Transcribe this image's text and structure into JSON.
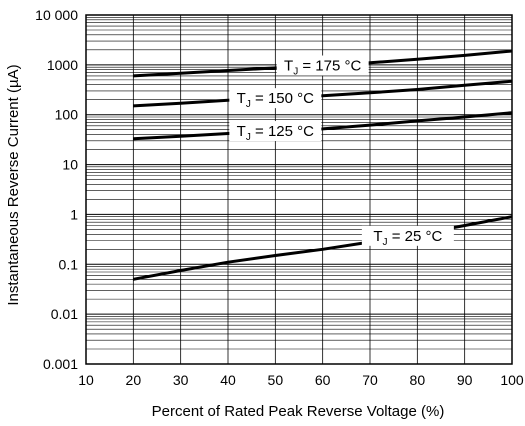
{
  "chart_data": {
    "type": "line",
    "xlabel": "Percent of Rated Peak Reverse Voltage (%)",
    "ylabel": "Instantaneous Reverse Current (µA)",
    "xlim": [
      10,
      100
    ],
    "ylim": [
      0.001,
      10000
    ],
    "yscale": "log",
    "grid": true,
    "x_ticks": [
      "10",
      "20",
      "30",
      "40",
      "50",
      "60",
      "70",
      "80",
      "90",
      "100"
    ],
    "y_ticks": [
      "10 000",
      "1000",
      "100",
      "10",
      "1",
      "0.1",
      "0.01",
      "0.001"
    ],
    "x_tick_values": [
      10,
      20,
      30,
      40,
      50,
      60,
      70,
      80,
      90,
      100
    ],
    "y_tick_values": [
      10000,
      1000,
      100,
      10,
      1,
      0.1,
      0.01,
      0.001
    ],
    "series": [
      {
        "label_main": "T",
        "label_sub": "J",
        "label_tail": " = 175 °C",
        "x": [
          20,
          30,
          40,
          50,
          60,
          70,
          80,
          90,
          100
        ],
        "y": [
          600,
          680,
          770,
          870,
          970,
          1100,
          1300,
          1550,
          1900
        ],
        "label_at": 60
      },
      {
        "label_main": "T",
        "label_sub": "J",
        "label_tail": " = 150 °C",
        "x": [
          20,
          30,
          40,
          50,
          60,
          70,
          80,
          90,
          100
        ],
        "y": [
          150,
          170,
          195,
          215,
          240,
          275,
          320,
          390,
          470
        ],
        "label_at": 50
      },
      {
        "label_main": "T",
        "label_sub": "J",
        "label_tail": " = 125 °C",
        "x": [
          20,
          30,
          40,
          50,
          60,
          70,
          80,
          90,
          100
        ],
        "y": [
          33,
          37,
          42,
          47,
          52,
          62,
          75,
          90,
          110
        ],
        "label_at": 50
      },
      {
        "label_main": "T",
        "label_sub": "J",
        "label_tail": " = 25 °C",
        "x": [
          20,
          30,
          40,
          50,
          60,
          70,
          80,
          90,
          100
        ],
        "y": [
          0.05,
          0.075,
          0.11,
          0.15,
          0.2,
          0.28,
          0.4,
          0.6,
          0.9
        ],
        "label_at": 78
      }
    ]
  }
}
